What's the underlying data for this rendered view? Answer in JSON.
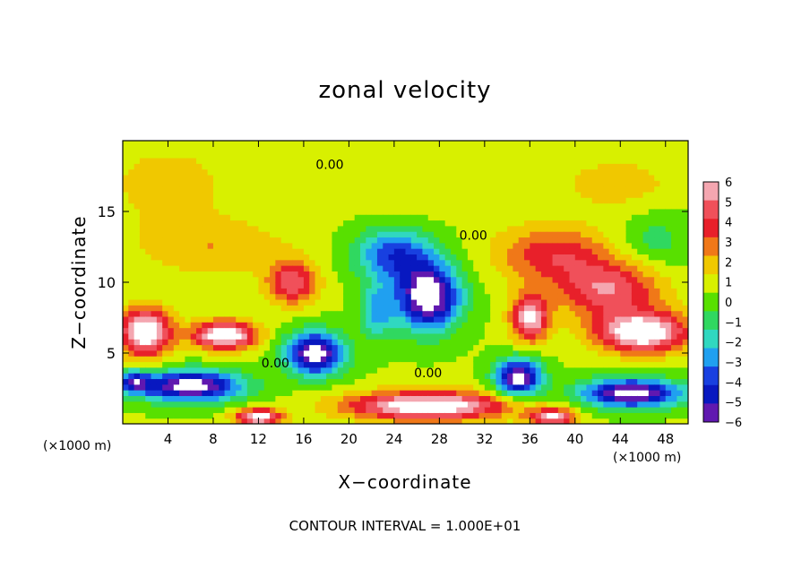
{
  "chart_data": {
    "type": "heatmap",
    "title": "zonal velocity",
    "xlabel": "X−coordinate",
    "ylabel": "Z−coordinate",
    "x_unit_label_left": "(×1000 m)",
    "x_unit_label_right": "(×1000 m)",
    "footer": "CONTOUR INTERVAL = 1.000E+01",
    "xlim": [
      0,
      50
    ],
    "ylim": [
      0,
      20
    ],
    "x_ticks": [
      4,
      8,
      12,
      16,
      20,
      24,
      28,
      32,
      36,
      40,
      44,
      48
    ],
    "y_ticks": [
      5,
      10,
      15
    ],
    "colorbar": {
      "levels": [
        6,
        5,
        4,
        3,
        2,
        1,
        0,
        -1,
        -2,
        -3,
        -4,
        -5,
        -6
      ],
      "colors": [
        "#f4a6b0",
        "#f0505a",
        "#e8202a",
        "#f07818",
        "#f0c800",
        "#d8f000",
        "#58e000",
        "#30d860",
        "#30d8c0",
        "#20a0f0",
        "#1840e0",
        "#0818c0",
        "#6018b0"
      ],
      "out_of_range_color": "#ffffff"
    },
    "contour_labels": [
      {
        "text": "0.00",
        "x": 18.3,
        "z": 18.0
      },
      {
        "text": "0.00",
        "x": 31.0,
        "z": 13.0
      },
      {
        "text": "0.00",
        "x": 13.5,
        "z": 4.0
      },
      {
        "text": "0.00",
        "x": 27.0,
        "z": 3.3
      }
    ],
    "field": {
      "background": 0.6,
      "features": [
        {
          "x": 4,
          "z": 17,
          "value": 1.4,
          "sx": 6,
          "sz": 3
        },
        {
          "x": 28,
          "z": 17,
          "value": 0.8,
          "sx": 10,
          "sz": 2
        },
        {
          "x": 44,
          "z": 17,
          "value": 1.4,
          "sx": 5,
          "sz": 2
        },
        {
          "x": 47,
          "z": 13,
          "value": -1.6,
          "sx": 3,
          "sz": 2
        },
        {
          "x": 8,
          "z": 12.5,
          "value": 1.8,
          "sx": 7,
          "sz": 2
        },
        {
          "x": 15,
          "z": 10,
          "value": 4.8,
          "sx": 2.2,
          "sz": 1.5
        },
        {
          "x": 38,
          "z": 12,
          "value": 3.6,
          "sx": 5,
          "sz": 2
        },
        {
          "x": 43,
          "z": 9.5,
          "value": 4.8,
          "sx": 4.5,
          "sz": 2
        },
        {
          "x": 24,
          "z": 12,
          "value": -4.8,
          "sx": 3.5,
          "sz": 1.8
        },
        {
          "x": 27,
          "z": 9,
          "value": -8.5,
          "sx": 2.8,
          "sz": 2.3
        },
        {
          "x": 22.5,
          "z": 8,
          "value": -3.2,
          "sx": 1.5,
          "sz": 2
        },
        {
          "x": 36,
          "z": 7.5,
          "value": 6.5,
          "sx": 1.6,
          "sz": 1.6
        },
        {
          "x": 2,
          "z": 6.5,
          "value": 7.5,
          "sx": 2.2,
          "sz": 1.7
        },
        {
          "x": 9,
          "z": 6.3,
          "value": 7.5,
          "sx": 2.8,
          "sz": 1
        },
        {
          "x": 46,
          "z": 6.5,
          "value": 7.5,
          "sx": 4,
          "sz": 1.4
        },
        {
          "x": 17,
          "z": 5,
          "value": -8,
          "sx": 2.6,
          "sz": 1.5
        },
        {
          "x": 6,
          "z": 2.7,
          "value": -8,
          "sx": 4.5,
          "sz": 1.1
        },
        {
          "x": 35,
          "z": 3.3,
          "value": -8,
          "sx": 2,
          "sz": 1.3
        },
        {
          "x": 45,
          "z": 2.2,
          "value": -8,
          "sx": 4.5,
          "sz": 1
        },
        {
          "x": 27,
          "z": 1.3,
          "value": 7.5,
          "sx": 7,
          "sz": 1
        },
        {
          "x": 12,
          "z": 0.5,
          "value": 7,
          "sx": 2,
          "sz": 0.6
        },
        {
          "x": 38,
          "z": 0.5,
          "value": 6,
          "sx": 2,
          "sz": 0.6
        },
        {
          "x": 1,
          "z": 3,
          "value": -5,
          "sx": 1.5,
          "sz": 0.8
        }
      ]
    }
  }
}
